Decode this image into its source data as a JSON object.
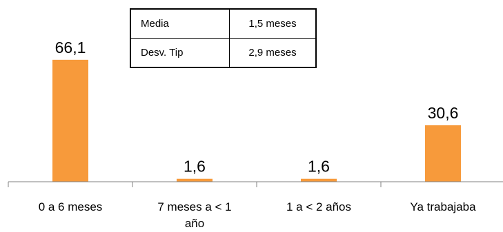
{
  "chart_data": {
    "type": "bar",
    "categories": [
      "0 a 6 meses",
      "7 meses a < 1 año",
      "1 a < 2 años",
      "Ya trabajaba"
    ],
    "values": [
      66.1,
      1.6,
      1.6,
      30.6
    ],
    "value_labels": [
      "66,1",
      "1,6",
      "1,6",
      "30,6"
    ],
    "bar_color": "#F79A3B",
    "ylim": [
      0,
      100
    ],
    "grid": false,
    "legend": "none"
  },
  "stats_table": {
    "rows": [
      {
        "label": "Media",
        "value": "1,5 meses"
      },
      {
        "label": "Desv. Tip",
        "value": "2,9 meses"
      }
    ]
  }
}
